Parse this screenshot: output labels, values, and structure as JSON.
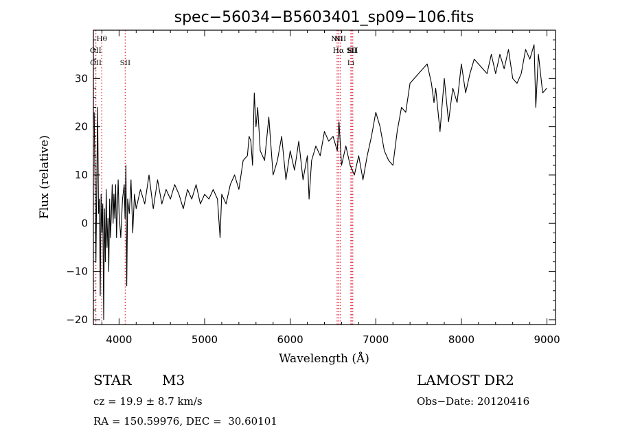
{
  "chart_data": {
    "type": "line",
    "title": "spec−56034−B5603401_sp09−106.fits",
    "xlabel": "Wavelength (Å)",
    "ylabel": "Flux (relative)",
    "xlim": [
      3700,
      9100
    ],
    "ylim": [
      -21,
      40
    ],
    "xticks": [
      4000,
      5000,
      6000,
      7000,
      8000,
      9000
    ],
    "xtick_labels": [
      "4000",
      "5000",
      "6000",
      "7000",
      "8000",
      "9000"
    ],
    "yticks": [
      -20,
      -10,
      0,
      10,
      20,
      30
    ],
    "ytick_labels": [
      "−20",
      "−10",
      "0",
      "10",
      "20",
      "30"
    ],
    "grid": false,
    "line_color": "#000000",
    "marker_color": "#e8243c",
    "spectral_lines": [
      {
        "label": "Hθ",
        "x": 3798,
        "row": 0
      },
      {
        "label": "OII",
        "x": 3727,
        "row": 1
      },
      {
        "label": "OII",
        "x": 3729,
        "row": 2
      },
      {
        "label": "SII",
        "x": 4072,
        "row": 2
      },
      {
        "label": "NII",
        "x": 6548,
        "row": 0
      },
      {
        "label": "Hα",
        "x": 6563,
        "row": 1
      },
      {
        "label": "SII",
        "x": 6717,
        "row": 1
      },
      {
        "label": "NII",
        "x": 6584,
        "row": 0
      },
      {
        "label": "Li",
        "x": 6708,
        "row": 2
      },
      {
        "label": "SII",
        "x": 6731,
        "row": 1
      }
    ],
    "series": [
      {
        "x": [
          3710,
          3730,
          3750,
          3760,
          3770,
          3780,
          3790,
          3800,
          3810,
          3820,
          3830,
          3840,
          3850,
          3860,
          3870,
          3880,
          3890,
          3900,
          3910,
          3920,
          3930,
          3940,
          3950,
          3960,
          3970,
          3980,
          3990,
          4000,
          4020,
          4040,
          4060,
          4070,
          4080,
          4090,
          4100,
          4120,
          4140,
          4160,
          4180,
          4200,
          4250,
          4300,
          4350,
          4400,
          4450,
          4500,
          4550,
          4600,
          4650,
          4700,
          4750,
          4800,
          4850,
          4900,
          4950,
          5000,
          5050,
          5100,
          5150,
          5180,
          5200,
          5250,
          5300,
          5350,
          5400,
          5450,
          5500,
          5520,
          5540,
          5560,
          5580,
          5600,
          5620,
          5650,
          5700,
          5750,
          5800,
          5850,
          5900,
          5950,
          6000,
          6050,
          6100,
          6150,
          6200,
          6220,
          6250,
          6300,
          6350,
          6400,
          6450,
          6500,
          6550,
          6570,
          6600,
          6650,
          6700,
          6750,
          6800,
          6850,
          6900,
          6950,
          7000,
          7050,
          7100,
          7150,
          7200,
          7250,
          7300,
          7350,
          7400,
          7450,
          7500,
          7550,
          7600,
          7650,
          7680,
          7700,
          7750,
          7800,
          7850,
          7900,
          7950,
          8000,
          8050,
          8100,
          8150,
          8200,
          8250,
          8300,
          8350,
          8400,
          8450,
          8500,
          8550,
          8600,
          8650,
          8700,
          8750,
          8800,
          8850,
          8870,
          8900,
          8950,
          9000
        ],
        "y": [
          23,
          -8,
          24,
          2,
          5,
          -15,
          6,
          -2,
          4,
          -20,
          3,
          -8,
          7,
          -5,
          1,
          -10,
          5,
          -3,
          2,
          8,
          0,
          6,
          1,
          8,
          -3,
          3,
          9,
          2,
          -3,
          5,
          8,
          1,
          12,
          -13,
          5,
          2,
          9,
          -2,
          6,
          3,
          7,
          4,
          10,
          3,
          9,
          4,
          7,
          5,
          8,
          6,
          3,
          7,
          5,
          8,
          4,
          6,
          5,
          7,
          5,
          -3,
          6,
          4,
          8,
          10,
          7,
          13,
          14,
          18,
          17,
          12,
          27,
          20,
          24,
          15,
          13,
          22,
          10,
          13,
          18,
          9,
          15,
          11,
          17,
          9,
          14,
          5,
          13,
          16,
          14,
          19,
          17,
          18,
          15,
          21,
          12,
          16,
          12,
          10,
          14,
          9,
          14,
          18,
          23,
          20,
          15,
          13,
          12,
          19,
          24,
          23,
          29,
          30,
          31,
          32,
          33,
          29,
          25,
          28,
          19,
          30,
          21,
          28,
          25,
          33,
          27,
          31,
          34,
          33,
          32,
          31,
          35,
          31,
          35,
          32,
          36,
          30,
          29,
          31,
          36,
          34,
          37,
          24,
          35,
          27,
          28
        ]
      }
    ]
  },
  "info": {
    "class_label": "STAR",
    "subclass_label": "M3",
    "survey": "LAMOST DR2",
    "cz": "cz = 19.9 ± 8.7 km/s",
    "obs_date": "Obs−Date: 20120416",
    "coords": "RA = 150.59976, DEC =  30.60101"
  }
}
